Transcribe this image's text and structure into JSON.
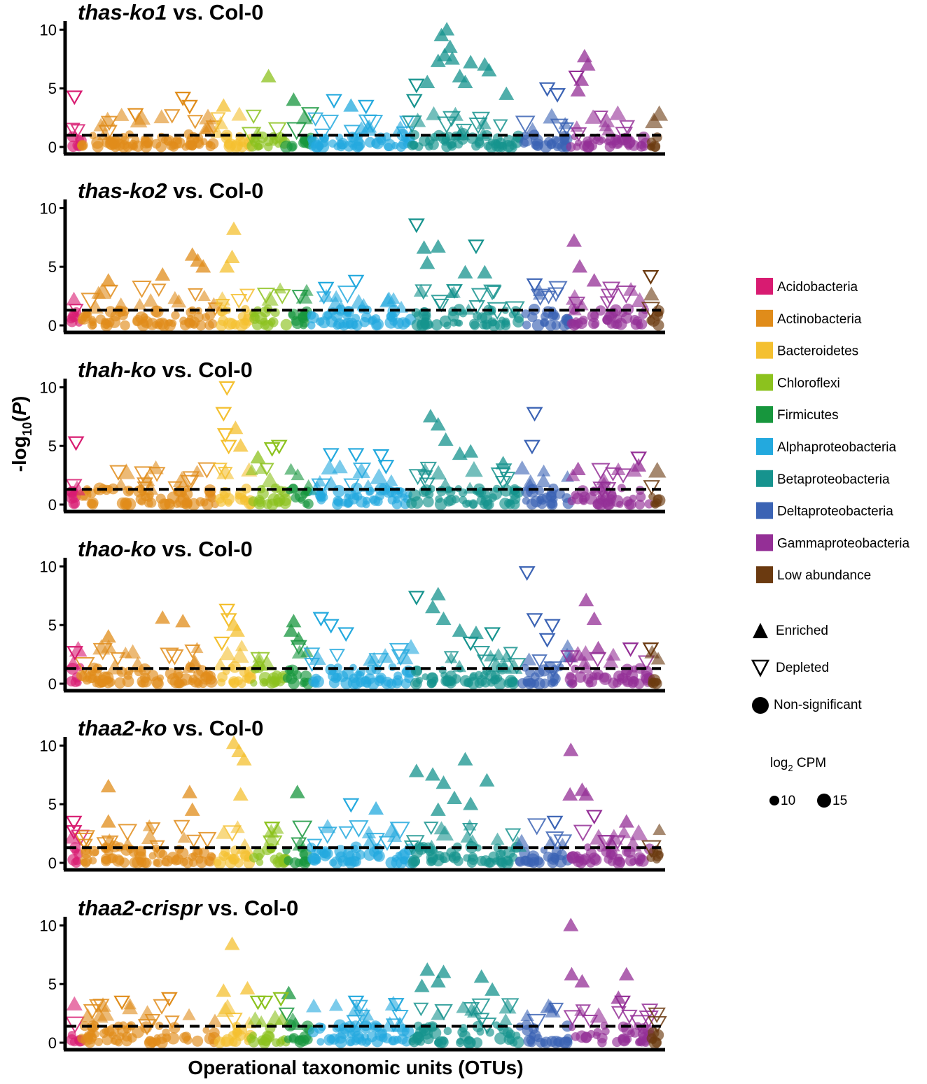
{
  "chart_data": {
    "type": "scatter",
    "ylabel": "-log10(P)",
    "xlabel": "Operational taxonomic units (OTUs)",
    "ylim": [
      0,
      10.5
    ],
    "yticks": [
      0,
      5,
      10
    ],
    "threshold_line": "dashed",
    "phyla": [
      {
        "name": "Acidobacteria",
        "color": "#D81B71",
        "start": 0.0,
        "end": 0.018
      },
      {
        "name": "Actinobacteria",
        "color": "#E08C1A",
        "start": 0.018,
        "end": 0.248
      },
      {
        "name": "Bacteroidetes",
        "color": "#F4C030",
        "start": 0.248,
        "end": 0.306
      },
      {
        "name": "Chloroflexi",
        "color": "#8CC21E",
        "start": 0.306,
        "end": 0.366
      },
      {
        "name": "Firmicutes",
        "color": "#17963D",
        "start": 0.366,
        "end": 0.408
      },
      {
        "name": "Alphaproteobacteria",
        "color": "#23A9DE",
        "start": 0.408,
        "end": 0.578
      },
      {
        "name": "Betaproteobacteria",
        "color": "#16938E",
        "start": 0.578,
        "end": 0.762
      },
      {
        "name": "Deltaproteobacteria",
        "color": "#3B63B4",
        "start": 0.762,
        "end": 0.848
      },
      {
        "name": "Gammaproteobacteria",
        "color": "#942F96",
        "start": 0.848,
        "end": 0.985
      },
      {
        "name": "Low abundance",
        "color": "#6B3A10",
        "start": 0.985,
        "end": 1.0
      }
    ],
    "panels": [
      {
        "title_italic": "thas-ko1",
        "title_rest": " vs. Col-0",
        "threshold": 1.0,
        "enriched": [
          [
            3,
            0.5,
            6.0
          ],
          [
            2,
            0.2,
            3.5
          ],
          [
            4,
            0.3,
            4.0
          ],
          [
            5,
            0.4,
            3.5
          ],
          [
            6,
            0.28,
            9.5
          ],
          [
            6,
            0.33,
            10.0
          ],
          [
            6,
            0.36,
            8.5
          ],
          [
            6,
            0.38,
            7.5
          ],
          [
            6,
            0.31,
            7.8
          ],
          [
            6,
            0.25,
            7.3
          ],
          [
            6,
            0.45,
            6.0
          ],
          [
            6,
            0.5,
            5.5
          ],
          [
            6,
            0.55,
            7.2
          ],
          [
            6,
            0.68,
            7.0
          ],
          [
            6,
            0.72,
            6.5
          ],
          [
            6,
            0.88,
            4.5
          ],
          [
            6,
            0.15,
            5.5
          ],
          [
            8,
            0.18,
            7.7
          ],
          [
            8,
            0.22,
            7.0
          ],
          [
            8,
            0.14,
            5.7
          ],
          [
            8,
            0.1,
            4.8
          ]
        ],
        "depleted": [
          [
            0,
            0.35,
            4.3
          ],
          [
            1,
            0.75,
            4.2
          ],
          [
            1,
            0.8,
            3.5
          ],
          [
            1,
            0.4,
            2.8
          ],
          [
            5,
            0.23,
            4.0
          ],
          [
            5,
            0.55,
            3.5
          ],
          [
            6,
            0.05,
            5.3
          ],
          [
            6,
            0.03,
            4.0
          ],
          [
            7,
            0.55,
            5.0
          ],
          [
            7,
            0.75,
            4.5
          ],
          [
            8,
            0.08,
            6.0
          ]
        ]
      },
      {
        "title_italic": "thas-ko2",
        "title_rest": " vs. Col-0",
        "threshold": 1.3,
        "enriched": [
          [
            2,
            0.5,
            8.2
          ],
          [
            2,
            0.45,
            5.8
          ],
          [
            2,
            0.3,
            5.0
          ],
          [
            1,
            0.82,
            6.0
          ],
          [
            1,
            0.86,
            5.5
          ],
          [
            1,
            0.9,
            5.0
          ],
          [
            1,
            0.6,
            4.3
          ],
          [
            1,
            0.2,
            3.8
          ],
          [
            6,
            0.12,
            6.6
          ],
          [
            6,
            0.25,
            6.7
          ],
          [
            6,
            0.15,
            5.3
          ],
          [
            6,
            0.5,
            4.5
          ],
          [
            6,
            0.68,
            4.5
          ],
          [
            8,
            0.05,
            7.2
          ],
          [
            8,
            0.12,
            5.0
          ],
          [
            8,
            0.3,
            3.8
          ]
        ],
        "depleted": [
          [
            5,
            0.45,
            3.8
          ],
          [
            5,
            0.15,
            3.2
          ],
          [
            6,
            0.05,
            8.6
          ],
          [
            6,
            0.6,
            6.8
          ],
          [
            6,
            0.4,
            3.0
          ],
          [
            9,
            0.0,
            4.2
          ],
          [
            7,
            0.3,
            3.5
          ]
        ]
      },
      {
        "title_italic": "thah-ko",
        "title_rest": " vs. Col-0",
        "threshold": 1.3,
        "enriched": [
          [
            2,
            0.55,
            6.5
          ],
          [
            2,
            0.7,
            5.0
          ],
          [
            3,
            0.2,
            4.0
          ],
          [
            6,
            0.18,
            7.5
          ],
          [
            6,
            0.25,
            6.8
          ],
          [
            6,
            0.32,
            5.5
          ],
          [
            6,
            0.45,
            4.3
          ],
          [
            6,
            0.55,
            4.5
          ],
          [
            6,
            0.85,
            3.5
          ],
          [
            8,
            0.1,
            3.0
          ],
          [
            8,
            0.85,
            3.3
          ]
        ],
        "depleted": [
          [
            2,
            0.3,
            10.0
          ],
          [
            2,
            0.2,
            7.8
          ],
          [
            2,
            0.25,
            6.0
          ],
          [
            2,
            0.35,
            5.0
          ],
          [
            0,
            0.5,
            5.3
          ],
          [
            3,
            0.6,
            4.8
          ],
          [
            3,
            0.8,
            5.0
          ],
          [
            5,
            0.2,
            4.3
          ],
          [
            5,
            0.45,
            4.3
          ],
          [
            5,
            0.7,
            4.2
          ],
          [
            5,
            0.75,
            3.3
          ],
          [
            7,
            0.3,
            7.8
          ],
          [
            7,
            0.25,
            5.0
          ],
          [
            8,
            0.85,
            4.0
          ]
        ]
      },
      {
        "title_italic": "thao-ko",
        "title_rest": " vs. Col-0",
        "threshold": 1.3,
        "enriched": [
          [
            2,
            0.5,
            5.0
          ],
          [
            2,
            0.6,
            4.5
          ],
          [
            1,
            0.6,
            5.6
          ],
          [
            1,
            0.75,
            5.3
          ],
          [
            1,
            0.2,
            4.0
          ],
          [
            4,
            0.3,
            5.3
          ],
          [
            4,
            0.2,
            4.5
          ],
          [
            4,
            0.5,
            3.8
          ],
          [
            6,
            0.25,
            7.6
          ],
          [
            6,
            0.2,
            6.5
          ],
          [
            6,
            0.3,
            5.5
          ],
          [
            6,
            0.45,
            4.5
          ],
          [
            6,
            0.6,
            4.3
          ],
          [
            8,
            0.2,
            7.1
          ],
          [
            8,
            0.3,
            5.5
          ],
          [
            8,
            0.35,
            3.0
          ]
        ],
        "depleted": [
          [
            2,
            0.3,
            6.3
          ],
          [
            2,
            0.35,
            5.5
          ],
          [
            2,
            0.15,
            3.5
          ],
          [
            5,
            0.1,
            5.6
          ],
          [
            5,
            0.2,
            5.0
          ],
          [
            5,
            0.35,
            4.3
          ],
          [
            6,
            0.05,
            7.4
          ],
          [
            6,
            0.75,
            4.3
          ],
          [
            6,
            0.55,
            3.5
          ],
          [
            7,
            0.15,
            9.5
          ],
          [
            7,
            0.3,
            5.5
          ],
          [
            7,
            0.65,
            5.0
          ],
          [
            7,
            0.55,
            3.8
          ],
          [
            0,
            0.4,
            2.7
          ],
          [
            8,
            0.75,
            3.0
          ],
          [
            9,
            0.0,
            3.0
          ]
        ]
      },
      {
        "title_italic": "thaa2-ko",
        "title_rest": " vs. Col-0",
        "threshold": 1.3,
        "enriched": [
          [
            2,
            0.5,
            10.2
          ],
          [
            2,
            0.65,
            9.5
          ],
          [
            2,
            0.8,
            8.8
          ],
          [
            2,
            0.7,
            5.8
          ],
          [
            1,
            0.2,
            6.5
          ],
          [
            1,
            0.2,
            3.5
          ],
          [
            1,
            0.8,
            6.0
          ],
          [
            1,
            0.82,
            4.5
          ],
          [
            4,
            0.45,
            6.0
          ],
          [
            6,
            0.5,
            8.8
          ],
          [
            6,
            0.05,
            7.8
          ],
          [
            6,
            0.2,
            7.5
          ],
          [
            6,
            0.3,
            6.8
          ],
          [
            6,
            0.4,
            5.5
          ],
          [
            6,
            0.7,
            7.0
          ],
          [
            6,
            0.55,
            5.0
          ],
          [
            6,
            0.25,
            4.5
          ],
          [
            5,
            0.65,
            4.6
          ],
          [
            8,
            0.01,
            9.6
          ],
          [
            8,
            0.15,
            6.2
          ],
          [
            8,
            0.2,
            5.8
          ],
          [
            8,
            0.0,
            5.8
          ],
          [
            8,
            0.7,
            3.5
          ]
        ],
        "depleted": [
          [
            0,
            0.3,
            3.5
          ],
          [
            0,
            0.3,
            2.7
          ],
          [
            5,
            0.4,
            5.0
          ],
          [
            3,
            0.6,
            3.0
          ],
          [
            7,
            0.7,
            3.5
          ],
          [
            8,
            0.3,
            4.0
          ]
        ]
      },
      {
        "title_italic": "thaa2-crispr",
        "title_rest": " vs. Col-0",
        "threshold": 1.4,
        "enriched": [
          [
            2,
            0.45,
            8.4
          ],
          [
            2,
            0.9,
            4.6
          ],
          [
            2,
            0.2,
            4.4
          ],
          [
            4,
            0.1,
            4.2
          ],
          [
            6,
            0.15,
            6.2
          ],
          [
            6,
            0.25,
            5.2
          ],
          [
            6,
            0.3,
            6.0
          ],
          [
            6,
            0.1,
            4.8
          ],
          [
            6,
            0.65,
            5.6
          ],
          [
            6,
            0.75,
            4.5
          ],
          [
            8,
            0.01,
            10.0
          ],
          [
            8,
            0.02,
            5.8
          ],
          [
            8,
            0.15,
            5.2
          ],
          [
            8,
            0.7,
            5.8
          ],
          [
            8,
            0.6,
            3.8
          ]
        ],
        "depleted": [
          [
            1,
            0.3,
            3.5
          ],
          [
            1,
            0.65,
            3.8
          ],
          [
            3,
            0.2,
            3.5
          ],
          [
            3,
            0.4,
            3.5
          ],
          [
            3,
            0.85,
            3.8
          ],
          [
            5,
            0.45,
            3.5
          ],
          [
            5,
            0.85,
            3.3
          ],
          [
            8,
            0.65,
            3.5
          ]
        ]
      }
    ]
  },
  "legend": {
    "phyla_labels": [
      "Acidobacteria",
      "Actinobacteria",
      "Bacteroidetes",
      "Chloroflexi",
      "Firmicutes",
      "Alphaproteobacteria",
      "Betaproteobacteria",
      "Deltaproteobacteria",
      "Gammaproteobacteria",
      "Low abundance"
    ],
    "shape_enriched": "Enriched",
    "shape_depleted": "Depleted",
    "shape_nonsig": "Non-significant",
    "size_title": "log2 CPM",
    "size_small": "10",
    "size_large": "15"
  }
}
